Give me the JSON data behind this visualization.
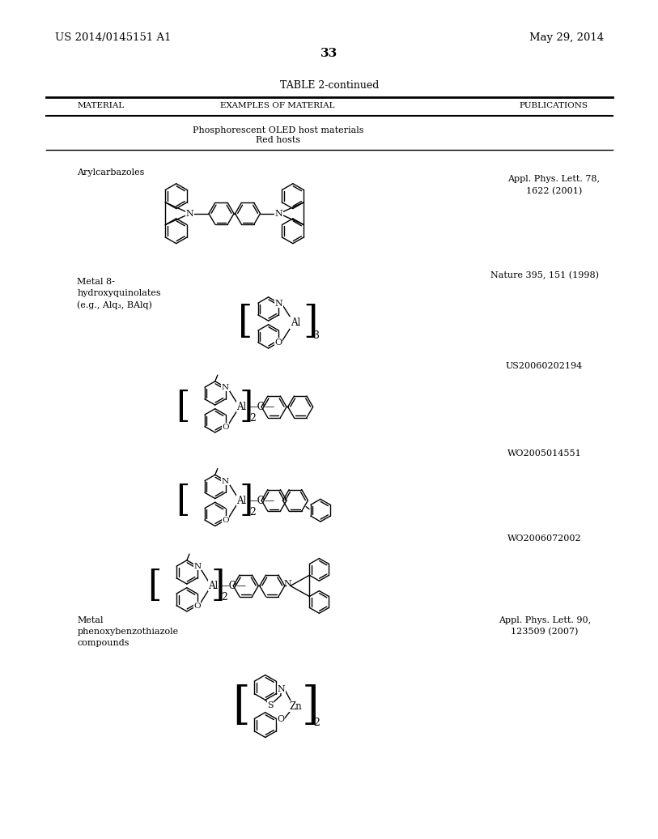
{
  "page_number": "33",
  "patent_number": "US 2014/0145151 A1",
  "patent_date": "May 29, 2014",
  "table_title": "TABLE 2-continued",
  "col_headers": [
    "MATERIAL",
    "EXAMPLES OF MATERIAL",
    "PUBLICATIONS"
  ],
  "section_header_line1": "Phosphorescent OLED host materials",
  "section_header_line2": "Red hosts",
  "bg_color": "#ffffff",
  "text_color": "#000000",
  "line_color": "#000000"
}
